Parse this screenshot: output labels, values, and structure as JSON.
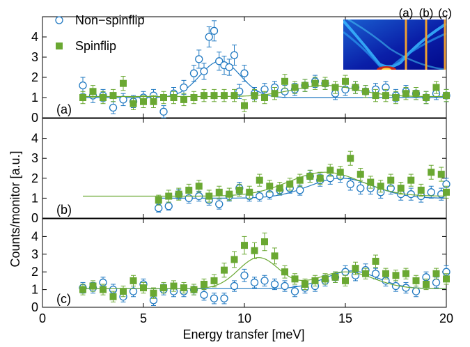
{
  "chart_data": {
    "type": "scatter",
    "xlabel": "Energy transfer [meV]",
    "ylabel": "Counts/monitor [a.u.]",
    "xlim": [
      0,
      20
    ],
    "ylim": [
      0,
      5
    ],
    "x_ticks": [
      0,
      5,
      10,
      15,
      20
    ],
    "y_ticks": [
      0,
      1,
      2,
      3,
      4
    ],
    "legend": {
      "placement": "top-left",
      "entries": [
        "Non−spinflip",
        "Spinflip"
      ]
    },
    "colors": {
      "nsf": "#1f78c1",
      "sf": "#6aa832",
      "inset_line": "#f0a030"
    },
    "inset": {
      "labels": [
        "(a)",
        "(b)",
        "(c)"
      ],
      "marker_positions_meV": [
        18,
        19,
        20
      ]
    },
    "panels": [
      {
        "label": "(a)",
        "series": [
          {
            "name": "Non−spinflip",
            "marker": "open-circle",
            "x": [
              2.0,
              2.5,
              3.0,
              3.5,
              4.0,
              4.5,
              5.0,
              5.5,
              6.0,
              6.5,
              7.0,
              7.5,
              7.75,
              8.0,
              8.25,
              8.5,
              8.75,
              9.0,
              9.25,
              9.5,
              9.75,
              10.0,
              10.5,
              11.0,
              11.5,
              12.0,
              12.5,
              13.0,
              13.5,
              14.0,
              14.5,
              15.0,
              15.5,
              16.0,
              16.5,
              17.0,
              17.5,
              18.0,
              18.5,
              19.0,
              19.5,
              20.0
            ],
            "y": [
              1.6,
              1.1,
              1.1,
              0.5,
              0.9,
              0.8,
              1.0,
              1.1,
              0.3,
              1.2,
              1.5,
              2.2,
              2.9,
              2.3,
              4.0,
              4.3,
              2.8,
              2.6,
              2.5,
              3.1,
              1.3,
              2.2,
              1.2,
              1.4,
              1.5,
              1.3,
              1.4,
              1.6,
              1.8,
              1.7,
              1.2,
              1.4,
              1.5,
              1.3,
              1.4,
              1.5,
              1.1,
              1.3,
              1.2,
              1.0,
              1.2,
              1.1
            ],
            "err": [
              0.4,
              0.35,
              0.3,
              0.3,
              0.3,
              0.3,
              0.3,
              0.3,
              0.3,
              0.3,
              0.35,
              0.4,
              0.45,
              0.4,
              0.5,
              0.5,
              0.45,
              0.45,
              0.4,
              0.5,
              0.35,
              0.4,
              0.3,
              0.3,
              0.3,
              0.3,
              0.3,
              0.3,
              0.3,
              0.3,
              0.3,
              0.3,
              0.3,
              0.3,
              0.3,
              0.3,
              0.3,
              0.3,
              0.3,
              0.3,
              0.3,
              0.3
            ],
            "fit": {
              "baseline": 1.0,
              "peaks": [
                {
                  "center": 8.8,
                  "amplitude": 1.8,
                  "sigma": 1.0
                }
              ]
            }
          },
          {
            "name": "Spinflip",
            "marker": "filled-square",
            "x": [
              2.0,
              2.5,
              3.0,
              3.5,
              4.0,
              4.5,
              5.0,
              5.5,
              6.0,
              6.5,
              7.0,
              7.5,
              8.0,
              8.5,
              9.0,
              9.5,
              10.0,
              10.5,
              11.0,
              11.5,
              12.0,
              12.5,
              13.0,
              13.5,
              14.0,
              14.5,
              15.0,
              15.5,
              16.0,
              16.5,
              17.0,
              17.5,
              18.0,
              18.5,
              19.0,
              19.5,
              20.0
            ],
            "y": [
              1.0,
              1.3,
              1.0,
              1.1,
              1.7,
              0.7,
              0.8,
              0.8,
              1.0,
              1.0,
              0.9,
              1.0,
              1.1,
              1.1,
              1.1,
              1.1,
              0.6,
              1.1,
              1.0,
              1.2,
              1.8,
              1.5,
              1.6,
              1.7,
              1.7,
              1.5,
              1.8,
              1.5,
              1.3,
              1.1,
              1.1,
              1.0,
              1.2,
              1.2,
              1.0,
              1.5,
              1.1
            ],
            "err": [
              0.3,
              0.3,
              0.3,
              0.3,
              0.35,
              0.3,
              0.3,
              0.3,
              0.3,
              0.3,
              0.3,
              0.3,
              0.3,
              0.3,
              0.3,
              0.3,
              0.3,
              0.3,
              0.3,
              0.3,
              0.35,
              0.3,
              0.3,
              0.3,
              0.3,
              0.3,
              0.3,
              0.3,
              0.3,
              0.3,
              0.3,
              0.3,
              0.3,
              0.3,
              0.3,
              0.3,
              0.3
            ],
            "fit": {
              "baseline": 1.05,
              "peaks": [
                {
                  "center": 14.0,
                  "amplitude": 0.55,
                  "sigma": 1.6
                }
              ]
            }
          }
        ]
      },
      {
        "label": "(b)",
        "series": [
          {
            "name": "Non−spinflip",
            "marker": "open-circle",
            "x": [
              5.75,
              6.25,
              6.75,
              7.25,
              7.75,
              8.25,
              8.75,
              9.25,
              9.75,
              10.25,
              10.75,
              11.25,
              11.75,
              12.25,
              12.75,
              13.25,
              13.75,
              14.25,
              14.75,
              15.25,
              15.75,
              16.25,
              16.75,
              17.25,
              17.75,
              18.25,
              18.75,
              19.25,
              19.75,
              20.0
            ],
            "y": [
              0.5,
              0.6,
              1.2,
              1.0,
              1.1,
              0.9,
              0.7,
              1.1,
              1.5,
              1.1,
              1.1,
              1.2,
              1.4,
              1.5,
              1.4,
              2.1,
              1.9,
              2.0,
              2.1,
              1.7,
              1.5,
              1.5,
              1.3,
              1.5,
              1.2,
              1.2,
              1.1,
              1.3,
              1.2,
              1.7
            ],
            "err": [
              0.2,
              0.2,
              0.25,
              0.25,
              0.25,
              0.25,
              0.25,
              0.25,
              0.3,
              0.25,
              0.25,
              0.25,
              0.25,
              0.25,
              0.25,
              0.3,
              0.3,
              0.3,
              0.3,
              0.3,
              0.3,
              0.3,
              0.3,
              0.3,
              0.3,
              0.3,
              0.3,
              0.3,
              0.3,
              0.3
            ],
            "fit": {
              "baseline": 1.0,
              "start": 5.75,
              "peaks": [
                {
                  "center": 14.8,
                  "amplitude": 1.0,
                  "sigma": 1.6
                }
              ]
            }
          },
          {
            "name": "Spinflip",
            "marker": "filled-square",
            "x": [
              5.75,
              6.25,
              6.75,
              7.25,
              7.75,
              8.25,
              8.75,
              9.25,
              9.75,
              10.25,
              10.75,
              11.25,
              11.75,
              12.25,
              12.75,
              13.25,
              13.75,
              14.25,
              14.75,
              15.25,
              15.75,
              16.25,
              16.75,
              17.25,
              17.75,
              18.25,
              18.75,
              19.25,
              19.75,
              20.0
            ],
            "y": [
              0.9,
              1.1,
              1.2,
              1.4,
              1.6,
              1.1,
              1.3,
              1.2,
              1.4,
              1.3,
              1.9,
              1.6,
              1.5,
              1.7,
              1.9,
              2.1,
              2.0,
              2.4,
              2.3,
              3.0,
              2.2,
              1.8,
              1.6,
              1.9,
              1.5,
              1.9,
              1.4,
              2.3,
              2.2,
              1.3
            ],
            "err": [
              0.25,
              0.3,
              0.3,
              0.3,
              0.3,
              0.3,
              0.3,
              0.3,
              0.3,
              0.3,
              0.3,
              0.3,
              0.3,
              0.3,
              0.3,
              0.3,
              0.3,
              0.3,
              0.3,
              0.35,
              0.3,
              0.3,
              0.3,
              0.3,
              0.3,
              0.3,
              0.3,
              0.35,
              0.35,
              0.3
            ],
            "fit": {
              "baseline": 1.1,
              "start": 2.0,
              "peaks": [
                {
                  "center": 14.0,
                  "amplitude": 1.2,
                  "sigma": 1.8
                }
              ]
            }
          }
        ]
      },
      {
        "label": "(c)",
        "series": [
          {
            "name": "Non−spinflip",
            "marker": "open-circle",
            "x": [
              2.0,
              2.5,
              3.0,
              3.5,
              4.0,
              4.5,
              5.0,
              5.5,
              6.0,
              6.5,
              7.0,
              7.5,
              8.0,
              8.5,
              9.0,
              9.5,
              10.0,
              10.5,
              11.0,
              11.5,
              12.0,
              12.5,
              13.0,
              13.5,
              14.0,
              14.5,
              15.0,
              15.5,
              16.0,
              16.5,
              17.0,
              17.5,
              18.0,
              18.5,
              19.0,
              19.5,
              20.0
            ],
            "y": [
              1.1,
              1.1,
              1.4,
              1.0,
              0.6,
              0.9,
              1.3,
              0.4,
              1.0,
              0.9,
              0.9,
              1.0,
              0.7,
              0.5,
              0.5,
              1.2,
              1.8,
              1.4,
              1.5,
              1.3,
              1.2,
              0.9,
              1.1,
              1.2,
              1.5,
              1.7,
              2.0,
              1.8,
              2.1,
              1.9,
              1.5,
              1.2,
              1.1,
              0.9,
              1.7,
              1.4,
              2.0
            ],
            "err": [
              0.3,
              0.3,
              0.3,
              0.3,
              0.3,
              0.3,
              0.3,
              0.3,
              0.3,
              0.3,
              0.3,
              0.3,
              0.3,
              0.3,
              0.3,
              0.3,
              0.35,
              0.3,
              0.3,
              0.3,
              0.3,
              0.3,
              0.3,
              0.3,
              0.3,
              0.3,
              0.35,
              0.3,
              0.35,
              0.3,
              0.3,
              0.3,
              0.3,
              0.3,
              0.3,
              0.3,
              0.35
            ],
            "fit": {
              "baseline": 1.05,
              "peaks": [
                {
                  "center": 15.3,
                  "amplitude": 1.0,
                  "sigma": 1.3
                }
              ]
            }
          },
          {
            "name": "Spinflip",
            "marker": "filled-square",
            "x": [
              2.0,
              2.5,
              3.0,
              3.5,
              4.0,
              4.5,
              5.0,
              5.5,
              6.0,
              6.5,
              7.0,
              7.5,
              8.0,
              8.5,
              9.0,
              9.5,
              10.0,
              10.5,
              11.0,
              11.5,
              12.0,
              12.5,
              13.0,
              13.5,
              14.0,
              14.5,
              15.0,
              15.5,
              16.0,
              16.5,
              17.0,
              17.5,
              18.0,
              18.5,
              19.0,
              19.5,
              20.0
            ],
            "y": [
              1.0,
              1.2,
              1.0,
              0.6,
              0.9,
              1.5,
              1.1,
              0.8,
              1.1,
              1.2,
              1.1,
              1.0,
              1.3,
              1.5,
              2.1,
              2.7,
              3.5,
              3.2,
              3.7,
              2.9,
              2.0,
              1.6,
              1.3,
              1.5,
              1.6,
              1.7,
              1.5,
              2.2,
              1.9,
              2.6,
              1.9,
              1.8,
              1.9,
              1.5,
              1.3,
              1.9,
              1.6
            ],
            "err": [
              0.3,
              0.3,
              0.3,
              0.3,
              0.3,
              0.3,
              0.3,
              0.3,
              0.3,
              0.3,
              0.3,
              0.3,
              0.3,
              0.35,
              0.4,
              0.45,
              0.5,
              0.45,
              0.5,
              0.45,
              0.35,
              0.3,
              0.3,
              0.3,
              0.3,
              0.3,
              0.3,
              0.35,
              0.3,
              0.35,
              0.3,
              0.3,
              0.3,
              0.3,
              0.3,
              0.3,
              0.3
            ],
            "fit": {
              "baseline": 1.05,
              "peaks": [
                {
                  "center": 10.7,
                  "amplitude": 1.75,
                  "sigma": 1.0
                },
                {
                  "center": 15.0,
                  "amplitude": 0.95,
                  "sigma": 1.4
                }
              ]
            }
          }
        ]
      }
    ]
  }
}
